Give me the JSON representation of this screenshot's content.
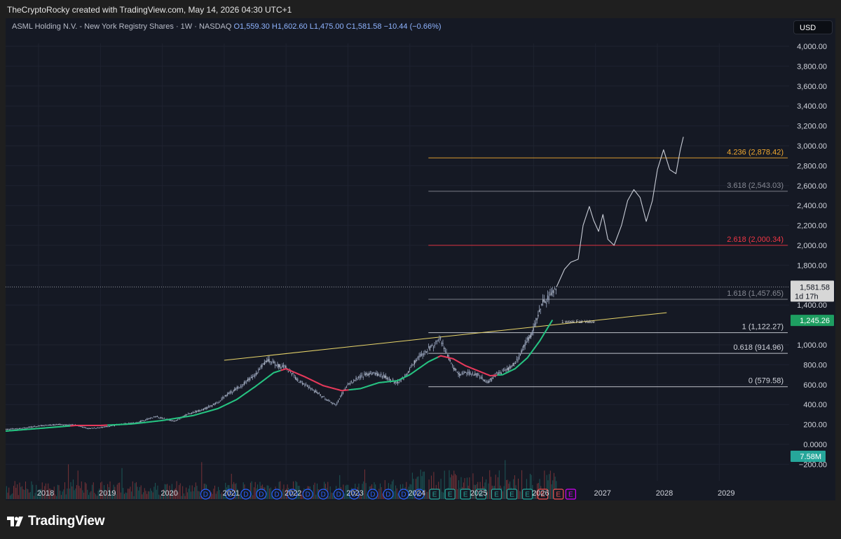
{
  "header": {
    "creator": "TheCryptoRocky created with TradingView.com, May 14, 2026 04:30 UTC+1"
  },
  "legend": {
    "symbol": "ASML Holding N.V. - New York Registry Shares · 1W · NASDAQ",
    "open": "O1,559.30",
    "high": "H1,602.60",
    "low": "L1,475.00",
    "close": "C1,581.58",
    "change": "−10.44 (−0.66%)"
  },
  "currency": "USD",
  "footer": {
    "brand": "TradingView"
  },
  "colors": {
    "background": "#151924",
    "candle": "#9aa6bf",
    "ma_up": "#26c281",
    "ma_down": "#e5395a",
    "trendline": "#e8d56a",
    "price_badge": "#d7d7d7",
    "volume_badge": "#26a69a",
    "fair_value_badge": "#1e9e61"
  },
  "chart_data": {
    "type": "line",
    "x_unit": "year",
    "y_range": [
      -200,
      4000
    ],
    "xlim": [
      2017.4,
      2029.0
    ],
    "y_ticks": [
      {
        "value": 4000,
        "label": "4,000.00"
      },
      {
        "value": 3800,
        "label": "3,800.00"
      },
      {
        "value": 3600,
        "label": "3,600.00"
      },
      {
        "value": 3400,
        "label": "3,400.00"
      },
      {
        "value": 3200,
        "label": "3,200.00"
      },
      {
        "value": 3000,
        "label": "3,000.00"
      },
      {
        "value": 2800,
        "label": "2,800.00"
      },
      {
        "value": 2600,
        "label": "2,600.00"
      },
      {
        "value": 2400,
        "label": "2,400.00"
      },
      {
        "value": 2200,
        "label": "2,200.00"
      },
      {
        "value": 2000,
        "label": "2,000.00"
      },
      {
        "value": 1800,
        "label": "1,800.00"
      },
      {
        "value": 1400,
        "label": "1,400.00"
      },
      {
        "value": 1000,
        "label": "1,000.00"
      },
      {
        "value": 800,
        "label": "800.00"
      },
      {
        "value": 600,
        "label": "600.00"
      },
      {
        "value": 400,
        "label": "400.00"
      },
      {
        "value": 200,
        "label": "200.00"
      },
      {
        "value": 0,
        "label": "0.0000"
      },
      {
        "value": -200,
        "label": "−200.00"
      }
    ],
    "x_ticks": [
      {
        "value": 2018,
        "label": "2018"
      },
      {
        "value": 2019,
        "label": "2019"
      },
      {
        "value": 2020,
        "label": "2020"
      },
      {
        "value": 2021,
        "label": "2021"
      },
      {
        "value": 2022,
        "label": "2022"
      },
      {
        "value": 2023,
        "label": "2023"
      },
      {
        "value": 2024,
        "label": "2024"
      },
      {
        "value": 2025,
        "label": "2025"
      },
      {
        "value": 2026,
        "label": "2026"
      },
      {
        "value": 2027,
        "label": "2027"
      },
      {
        "value": 2028,
        "label": "2028"
      },
      {
        "value": 2029,
        "label": "2029"
      }
    ],
    "fib_levels": [
      {
        "ratio_label": "4.236 (2,878.42)",
        "value": 2878.42,
        "color": "#f0a830"
      },
      {
        "ratio_label": "3.618 (2,543.03)",
        "value": 2543.03,
        "color": "#868993"
      },
      {
        "ratio_label": "2.618 (2,000.34)",
        "value": 2000.34,
        "color": "#f23645"
      },
      {
        "ratio_label": "1.618 (1,457.65)",
        "value": 1457.65,
        "color": "#868993"
      },
      {
        "ratio_label": "1 (1,122.27)",
        "value": 1122.27,
        "color": "#d1d4dc"
      },
      {
        "ratio_label": "0.618 (914.96)",
        "value": 914.96,
        "color": "#d1d4dc"
      },
      {
        "ratio_label": "0 (579.58)",
        "value": 579.58,
        "color": "#d1d4dc"
      }
    ],
    "fib_x_range": [
      2024.3,
      2029.0
    ],
    "price_history": [
      [
        2017.4,
        150
      ],
      [
        2017.7,
        160
      ],
      [
        2018.0,
        185
      ],
      [
        2018.3,
        200
      ],
      [
        2018.6,
        195
      ],
      [
        2018.8,
        160
      ],
      [
        2019.0,
        170
      ],
      [
        2019.3,
        200
      ],
      [
        2019.6,
        220
      ],
      [
        2019.9,
        280
      ],
      [
        2020.2,
        230
      ],
      [
        2020.4,
        300
      ],
      [
        2020.7,
        360
      ],
      [
        2020.9,
        420
      ],
      [
        2021.0,
        480
      ],
      [
        2021.3,
        600
      ],
      [
        2021.5,
        700
      ],
      [
        2021.7,
        850
      ],
      [
        2021.85,
        800
      ],
      [
        2022.0,
        770
      ],
      [
        2022.2,
        640
      ],
      [
        2022.4,
        560
      ],
      [
        2022.6,
        480
      ],
      [
        2022.8,
        390
      ],
      [
        2022.9,
        500
      ],
      [
        2023.0,
        600
      ],
      [
        2023.2,
        680
      ],
      [
        2023.4,
        720
      ],
      [
        2023.6,
        680
      ],
      [
        2023.8,
        620
      ],
      [
        2023.95,
        700
      ],
      [
        2024.1,
        850
      ],
      [
        2024.3,
        960
      ],
      [
        2024.5,
        1050
      ],
      [
        2024.6,
        900
      ],
      [
        2024.7,
        780
      ],
      [
        2024.8,
        700
      ],
      [
        2024.9,
        720
      ],
      [
        2025.1,
        700
      ],
      [
        2025.25,
        620
      ],
      [
        2025.4,
        700
      ],
      [
        2025.6,
        760
      ],
      [
        2025.75,
        850
      ],
      [
        2025.85,
        1000
      ],
      [
        2025.95,
        1080
      ],
      [
        2026.05,
        1250
      ],
      [
        2026.15,
        1420
      ],
      [
        2026.25,
        1480
      ],
      [
        2026.37,
        1581.58
      ]
    ],
    "projection": [
      [
        2026.37,
        1581.58
      ],
      [
        2026.5,
        1760
      ],
      [
        2026.6,
        1830
      ],
      [
        2026.72,
        1860
      ],
      [
        2026.8,
        2200
      ],
      [
        2026.9,
        2390
      ],
      [
        2026.97,
        2250
      ],
      [
        2027.05,
        2140
      ],
      [
        2027.12,
        2310
      ],
      [
        2027.2,
        2060
      ],
      [
        2027.3,
        2000
      ],
      [
        2027.42,
        2200
      ],
      [
        2027.52,
        2450
      ],
      [
        2027.62,
        2560
      ],
      [
        2027.72,
        2480
      ],
      [
        2027.82,
        2240
      ],
      [
        2027.92,
        2450
      ],
      [
        2028.0,
        2760
      ],
      [
        2028.1,
        2960
      ],
      [
        2028.2,
        2760
      ],
      [
        2028.3,
        2720
      ],
      [
        2028.37,
        2960
      ],
      [
        2028.42,
        3090
      ]
    ],
    "moving_average": [
      [
        2017.4,
        130
      ],
      [
        2017.8,
        150
      ],
      [
        2018.2,
        170
      ],
      [
        2018.6,
        190
      ],
      [
        2019.0,
        190
      ],
      [
        2019.5,
        205
      ],
      [
        2020.0,
        240
      ],
      [
        2020.5,
        290
      ],
      [
        2020.9,
        360
      ],
      [
        2021.2,
        450
      ],
      [
        2021.5,
        580
      ],
      [
        2021.8,
        720
      ],
      [
        2022.0,
        760
      ],
      [
        2022.3,
        680
      ],
      [
        2022.6,
        590
      ],
      [
        2022.9,
        540
      ],
      [
        2023.2,
        560
      ],
      [
        2023.5,
        620
      ],
      [
        2023.8,
        640
      ],
      [
        2024.0,
        700
      ],
      [
        2024.3,
        830
      ],
      [
        2024.5,
        890
      ],
      [
        2024.7,
        860
      ],
      [
        2024.9,
        790
      ],
      [
        2025.1,
        740
      ],
      [
        2025.3,
        690
      ],
      [
        2025.5,
        700
      ],
      [
        2025.7,
        760
      ],
      [
        2025.9,
        870
      ],
      [
        2026.1,
        1040
      ],
      [
        2026.3,
        1245.26
      ]
    ],
    "ma_down_segments": [
      [
        2018.5,
        2019.1
      ],
      [
        2021.9,
        2023.0
      ],
      [
        2024.45,
        2025.4
      ]
    ],
    "trendline": [
      [
        2021.0,
        845
      ],
      [
        2029.0,
        1380
      ]
    ],
    "fair_value_label": "1 week Fair Value",
    "fair_value_at": [
      2026.45,
      1245.26
    ],
    "price_marker": {
      "value": 1581.58,
      "label": "1,581.58",
      "countdown": "1d 17h"
    },
    "fair_value_marker": {
      "value": 1245.26,
      "label": "1,245.26"
    },
    "volume_marker": {
      "value": 0,
      "label": "7.58M"
    },
    "events": [
      {
        "x": 2020.7,
        "label": "D",
        "kind": "dividend"
      },
      {
        "x": 2021.1,
        "label": "D",
        "kind": "dividend"
      },
      {
        "x": 2021.35,
        "label": "D",
        "kind": "dividend"
      },
      {
        "x": 2021.6,
        "label": "D",
        "kind": "dividend"
      },
      {
        "x": 2021.85,
        "label": "D",
        "kind": "dividend"
      },
      {
        "x": 2022.1,
        "label": "D",
        "kind": "dividend"
      },
      {
        "x": 2022.35,
        "label": "D",
        "kind": "dividend"
      },
      {
        "x": 2022.6,
        "label": "D",
        "kind": "dividend"
      },
      {
        "x": 2022.85,
        "label": "D",
        "kind": "dividend"
      },
      {
        "x": 2023.1,
        "label": "D",
        "kind": "dividend"
      },
      {
        "x": 2023.4,
        "label": "D",
        "kind": "dividend"
      },
      {
        "x": 2023.65,
        "label": "D",
        "kind": "dividend"
      },
      {
        "x": 2023.9,
        "label": "D",
        "kind": "dividend"
      },
      {
        "x": 2024.15,
        "label": "D",
        "kind": "dividend"
      },
      {
        "x": 2024.4,
        "label": "E",
        "kind": "earnings"
      },
      {
        "x": 2024.65,
        "label": "E",
        "kind": "earnings"
      },
      {
        "x": 2024.9,
        "label": "E",
        "kind": "earnings"
      },
      {
        "x": 2025.15,
        "label": "E",
        "kind": "earnings"
      },
      {
        "x": 2025.4,
        "label": "E",
        "kind": "earnings"
      },
      {
        "x": 2025.65,
        "label": "E",
        "kind": "earnings"
      },
      {
        "x": 2025.9,
        "label": "E",
        "kind": "earnings"
      },
      {
        "x": 2026.15,
        "label": "E",
        "kind": "earnings-neg"
      },
      {
        "x": 2026.4,
        "label": "E",
        "kind": "earnings-neg"
      },
      {
        "x": 2026.6,
        "label": "E",
        "kind": "earnings-future"
      }
    ]
  }
}
